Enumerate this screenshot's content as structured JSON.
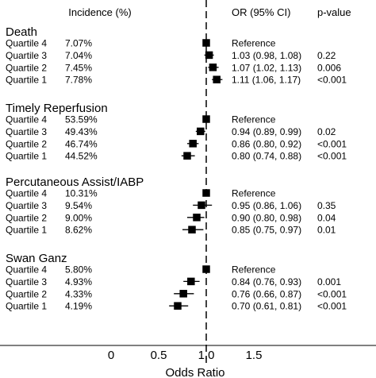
{
  "chart_data": {
    "type": "forest",
    "headers": {
      "incidence": "Incidence (%)",
      "or": "OR (95% CI)",
      "p": "p-value"
    },
    "xlabel": "Odds Ratio",
    "xlim": [
      -0.55,
      1.95
    ],
    "xticks": [
      0,
      0.5,
      1.0,
      1.5
    ],
    "xtick_labels": [
      "0",
      "0.5",
      "1.0",
      "1.5"
    ],
    "reference_line": 1.0,
    "groups": [
      {
        "title": "Death",
        "rows": [
          {
            "label": "Quartile 4",
            "incidence": "7.07%",
            "or": 1.0,
            "lo": null,
            "hi": null,
            "or_text": "Reference",
            "p": ""
          },
          {
            "label": "Quartile 3",
            "incidence": "7.04%",
            "or": 1.03,
            "lo": 0.98,
            "hi": 1.08,
            "or_text": "1.03 (0.98, 1.08)",
            "p": "0.22"
          },
          {
            "label": "Quartile 2",
            "incidence": "7.45%",
            "or": 1.07,
            "lo": 1.02,
            "hi": 1.13,
            "or_text": "1.07 (1.02, 1.13)",
            "p": "0.006"
          },
          {
            "label": "Quartile 1",
            "incidence": "7.78%",
            "or": 1.11,
            "lo": 1.06,
            "hi": 1.17,
            "or_text": "1.11 (1.06, 1.17)",
            "p": "<0.001"
          }
        ]
      },
      {
        "title": "Timely Reperfusion",
        "rows": [
          {
            "label": "Quartile 4",
            "incidence": "53.59%",
            "or": 1.0,
            "lo": null,
            "hi": null,
            "or_text": "Reference",
            "p": ""
          },
          {
            "label": "Quartile 3",
            "incidence": "49.43%",
            "or": 0.94,
            "lo": 0.89,
            "hi": 0.99,
            "or_text": "0.94 (0.89, 0.99)",
            "p": "0.02"
          },
          {
            "label": "Quartile 2",
            "incidence": "46.74%",
            "or": 0.86,
            "lo": 0.8,
            "hi": 0.92,
            "or_text": "0.86 (0.80, 0.92)",
            "p": "<0.001"
          },
          {
            "label": "Quartile 1",
            "incidence": "44.52%",
            "or": 0.8,
            "lo": 0.74,
            "hi": 0.88,
            "or_text": "0.80 (0.74, 0.88)",
            "p": "<0.001"
          }
        ]
      },
      {
        "title": "Percutaneous Assist/IABP",
        "rows": [
          {
            "label": "Quartile 4",
            "incidence": "10.31%",
            "or": 1.0,
            "lo": null,
            "hi": null,
            "or_text": "Reference",
            "p": ""
          },
          {
            "label": "Quartile 3",
            "incidence": "9.54%",
            "or": 0.95,
            "lo": 0.86,
            "hi": 1.06,
            "or_text": "0.95 (0.86, 1.06)",
            "p": "0.35"
          },
          {
            "label": "Quartile 2",
            "incidence": "9.00%",
            "or": 0.9,
            "lo": 0.8,
            "hi": 0.98,
            "or_text": "0.90 (0.80, 0.98)",
            "p": "0.04"
          },
          {
            "label": "Quartile 1",
            "incidence": "8.62%",
            "or": 0.85,
            "lo": 0.75,
            "hi": 0.97,
            "or_text": "0.85 (0.75, 0.97)",
            "p": "0.01"
          }
        ]
      },
      {
        "title": "Swan Ganz",
        "rows": [
          {
            "label": "Quartile 4",
            "incidence": "5.80%",
            "or": 1.0,
            "lo": null,
            "hi": null,
            "or_text": "Reference",
            "p": ""
          },
          {
            "label": "Quartile 3",
            "incidence": "4.93%",
            "or": 0.84,
            "lo": 0.76,
            "hi": 0.93,
            "or_text": "0.84 (0.76, 0.93)",
            "p": "0.001"
          },
          {
            "label": "Quartile 2",
            "incidence": "4.33%",
            "or": 0.76,
            "lo": 0.66,
            "hi": 0.87,
            "or_text": "0.76 (0.66, 0.87)",
            "p": "<0.001"
          },
          {
            "label": "Quartile 1",
            "incidence": "4.19%",
            "or": 0.7,
            "lo": 0.61,
            "hi": 0.81,
            "or_text": "0.70 (0.61, 0.81)",
            "p": "<0.001"
          }
        ]
      }
    ]
  }
}
